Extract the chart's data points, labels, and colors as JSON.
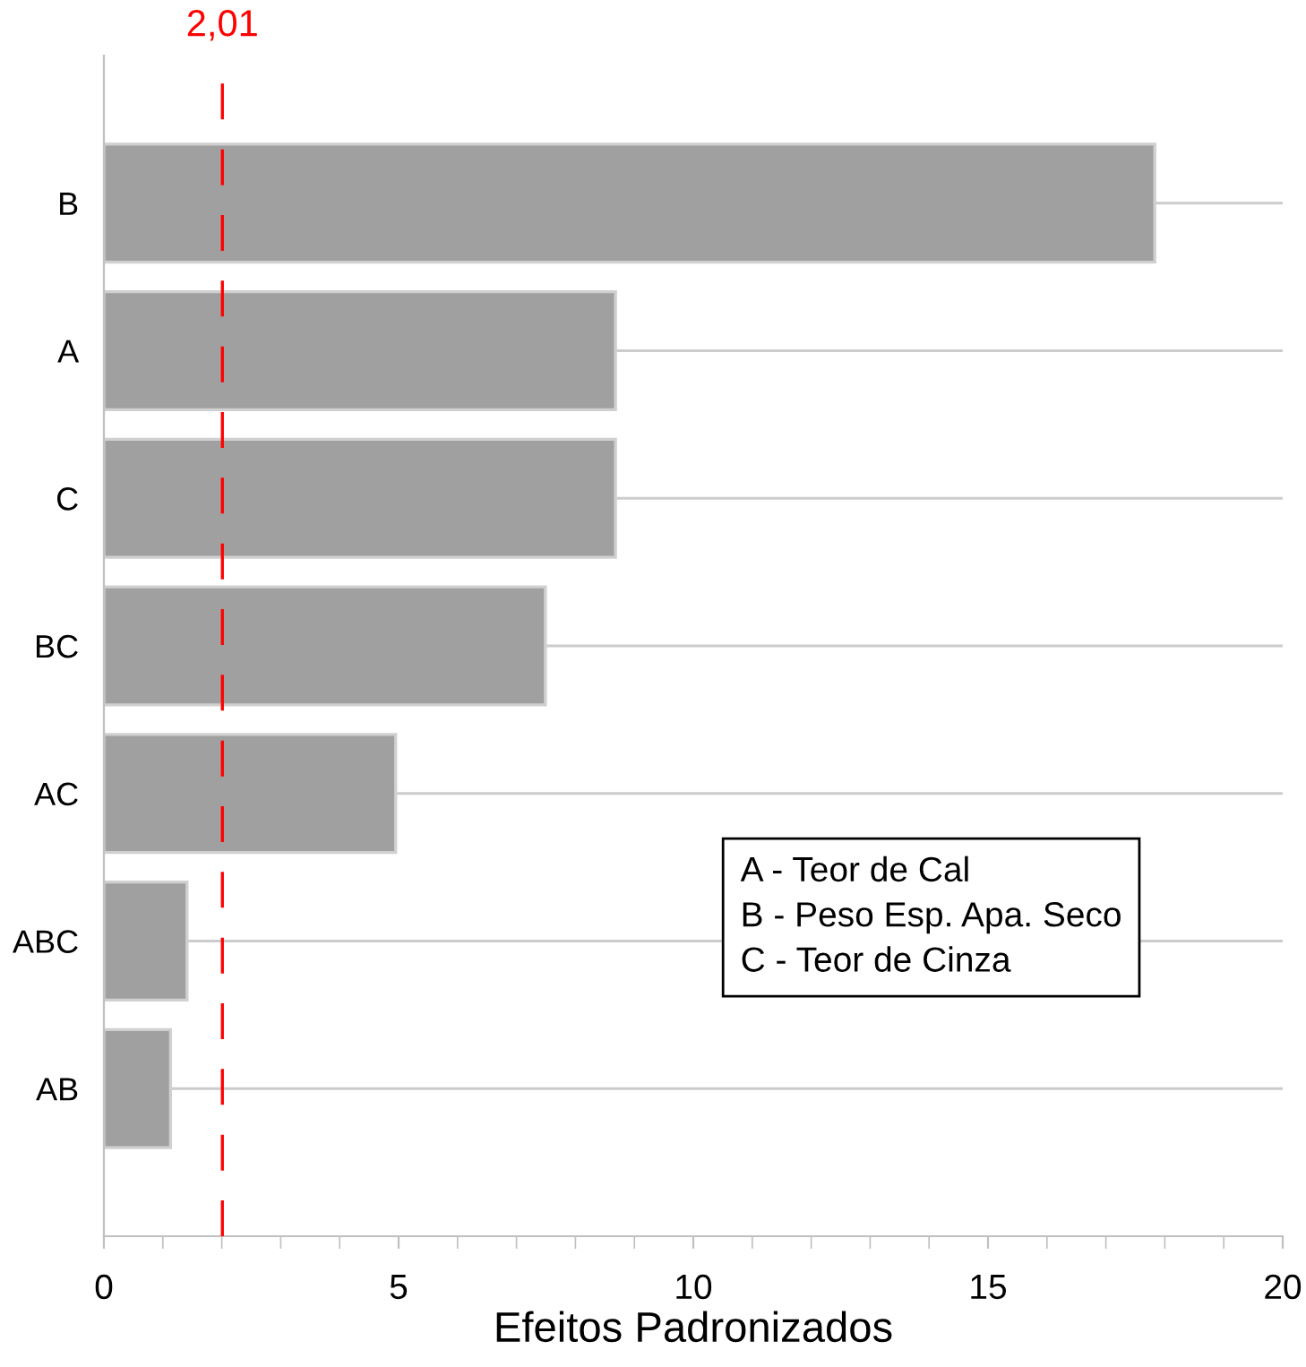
{
  "chart_data": {
    "type": "bar",
    "orientation": "horizontal",
    "xlabel": "Efeitos Padronizados",
    "categories": [
      "B",
      "A",
      "C",
      "BC",
      "AC",
      "ABC",
      "AB"
    ],
    "values": [
      17.83,
      8.68,
      8.68,
      7.49,
      4.95,
      1.41,
      1.13
    ],
    "color": "#a0a0a0",
    "xlim": [
      0,
      20
    ],
    "xticks": [
      0,
      5,
      10,
      15,
      20
    ],
    "grid": "y",
    "ref_lines": [
      {
        "axis": "x",
        "value": 2.01,
        "label": "2,01",
        "color": "#ff0000",
        "line_style": "dashed"
      }
    ],
    "annotations": [
      "A - Teor de Cal",
      "B - Peso Esp. Apa. Seco",
      "C - Teor de Cinza"
    ]
  }
}
